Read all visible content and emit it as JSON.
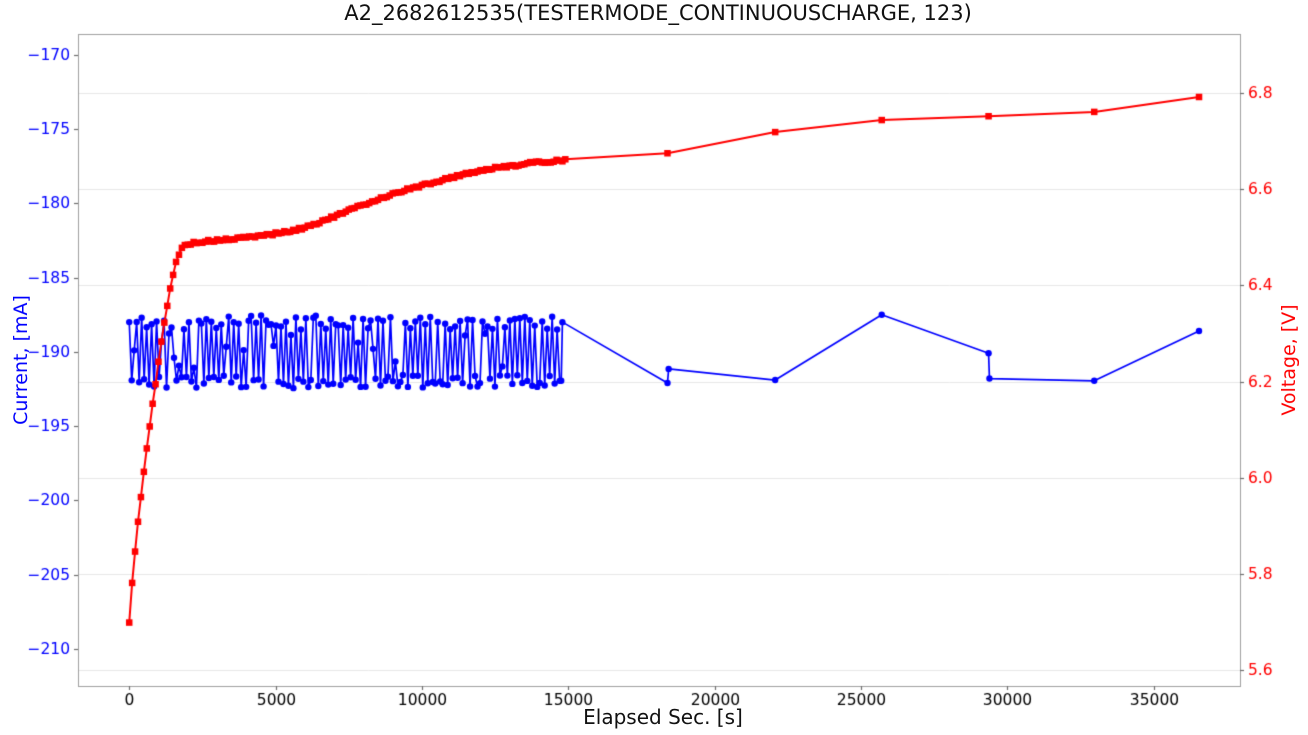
{
  "figure": {
    "title": "A2_2682612535(TESTERMODE_CONTINUOUSCHARGE, 123)",
    "xlabel": "Elapsed Sec. [s]",
    "ylabel_left": "Current, [mA]",
    "ylabel_right": "Voltage, [V]"
  },
  "chart_data": {
    "type": "line",
    "title": "A2_2682612535(TESTERMODE_CONTINUOUSCHARGE, 123)",
    "xlabel": "Elapsed Sec. [s]",
    "background": "#ffffff",
    "spine_color": "#9f9f9f",
    "tick_color": "#6e6e6e",
    "grid": {
      "axis": "right-y",
      "color": "#e7e7e7"
    },
    "x_axis": {
      "lim": [
        -1750,
        37950
      ],
      "tick_values": [
        0,
        5000,
        10000,
        15000,
        20000,
        25000,
        30000,
        35000
      ],
      "tick_labels": [
        "0",
        "5000",
        "10000",
        "15000",
        "20000",
        "25000",
        "30000",
        "35000"
      ],
      "label_color": "#000000"
    },
    "left_axis": {
      "label": "Current, [mA]",
      "color": "#0000ff",
      "lim": [
        -212.5,
        -168.6
      ],
      "tick_values": [
        -170,
        -175,
        -180,
        -185,
        -190,
        -195,
        -200,
        -205,
        -210
      ],
      "tick_labels": [
        "−170",
        "−175",
        "−180",
        "−185",
        "−190",
        "−195",
        "−200",
        "−205",
        "−210"
      ]
    },
    "right_axis": {
      "label": "Voltage, [V]",
      "color": "#ff0000",
      "lim": [
        5.567,
        6.923
      ],
      "tick_values": [
        5.6,
        5.8,
        6.0,
        6.2,
        6.4,
        6.6,
        6.8
      ],
      "tick_labels": [
        "5.6",
        "5.8",
        "6.0",
        "6.2",
        "6.4",
        "6.6",
        "6.8"
      ]
    },
    "series": [
      {
        "name": "Current",
        "axis": "left",
        "color": "#0000ff",
        "marker": "circle",
        "marker_size": 3.2,
        "line_width": 1.7,
        "dense_noise": {
          "comment": "rapid charge-pulse oscillation 0-14800s between ~-187.6 and ~-192.4 mA",
          "t_start": 0,
          "t_end": 14705,
          "t_step": 85,
          "seed": 11,
          "high": [
            -188.5,
            -187.55
          ],
          "low": [
            -192.45,
            -191.55
          ],
          "mid": [
            -191.3,
            -188.7
          ],
          "p_switch": 0.72,
          "p_mid": 0.14,
          "tail": [
            [
              14760,
              -191.95
            ],
            [
              14800,
              -188.0
            ]
          ]
        },
        "sparse": [
          [
            18390,
            -192.1
          ],
          [
            18430,
            -191.15
          ],
          [
            22070,
            -191.9
          ],
          [
            25710,
            -187.5
          ],
          [
            29360,
            -190.1
          ],
          [
            29390,
            -191.8
          ],
          [
            32970,
            -191.95
          ],
          [
            36550,
            -188.6
          ]
        ]
      },
      {
        "name": "Voltage",
        "axis": "right",
        "color": "#ff0000",
        "marker": "square",
        "marker_size": 6.5,
        "line_width": 2,
        "dense": {
          "t_step": 100,
          "t_end": 14900,
          "jitter_seed": 5,
          "jitter_amp": 0.005,
          "anchors": [
            [
              0,
              5.698
            ],
            [
              100,
              5.78
            ],
            [
              200,
              5.848
            ],
            [
              300,
              5.908
            ],
            [
              400,
              5.962
            ],
            [
              500,
              6.012
            ],
            [
              600,
              6.06
            ],
            [
              700,
              6.107
            ],
            [
              800,
              6.152
            ],
            [
              900,
              6.196
            ],
            [
              1000,
              6.24
            ],
            [
              1100,
              6.282
            ],
            [
              1200,
              6.322
            ],
            [
              1300,
              6.36
            ],
            [
              1400,
              6.394
            ],
            [
              1500,
              6.423
            ],
            [
              1600,
              6.447
            ],
            [
              1700,
              6.465
            ],
            [
              1800,
              6.477
            ],
            [
              1900,
              6.483
            ],
            [
              2000,
              6.486
            ],
            [
              2200,
              6.489
            ],
            [
              2400,
              6.49
            ],
            [
              2700,
              6.492
            ],
            [
              3000,
              6.494
            ],
            [
              3300,
              6.495
            ],
            [
              3600,
              6.497
            ],
            [
              3900,
              6.499
            ],
            [
              4200,
              6.501
            ],
            [
              4500,
              6.504
            ],
            [
              4800,
              6.506
            ],
            [
              5100,
              6.509
            ],
            [
              5400,
              6.512
            ],
            [
              5700,
              6.515
            ],
            [
              6000,
              6.521
            ],
            [
              6300,
              6.527
            ],
            [
              6600,
              6.534
            ],
            [
              6900,
              6.541
            ],
            [
              7200,
              6.548
            ],
            [
              7500,
              6.556
            ],
            [
              7800,
              6.563
            ],
            [
              8100,
              6.57
            ],
            [
              8400,
              6.577
            ],
            [
              8700,
              6.584
            ],
            [
              9000,
              6.59
            ],
            [
              9300,
              6.596
            ],
            [
              9600,
              6.601
            ],
            [
              9900,
              6.606
            ],
            [
              10200,
              6.611
            ],
            [
              10500,
              6.616
            ],
            [
              10800,
              6.621
            ],
            [
              11100,
              6.626
            ],
            [
              11400,
              6.631
            ],
            [
              11700,
              6.635
            ],
            [
              12000,
              6.639
            ],
            [
              12300,
              6.642
            ],
            [
              12600,
              6.645
            ],
            [
              12900,
              6.648
            ],
            [
              13200,
              6.65
            ],
            [
              13500,
              6.653
            ],
            [
              13800,
              6.655
            ],
            [
              14100,
              6.657
            ],
            [
              14400,
              6.658
            ],
            [
              14700,
              6.66
            ],
            [
              14900,
              6.661
            ]
          ]
        },
        "sparse": [
          [
            18390,
            6.675
          ],
          [
            22070,
            6.719
          ],
          [
            25710,
            6.744
          ],
          [
            29360,
            6.752
          ],
          [
            32970,
            6.761
          ],
          [
            36550,
            6.792
          ]
        ]
      }
    ]
  }
}
